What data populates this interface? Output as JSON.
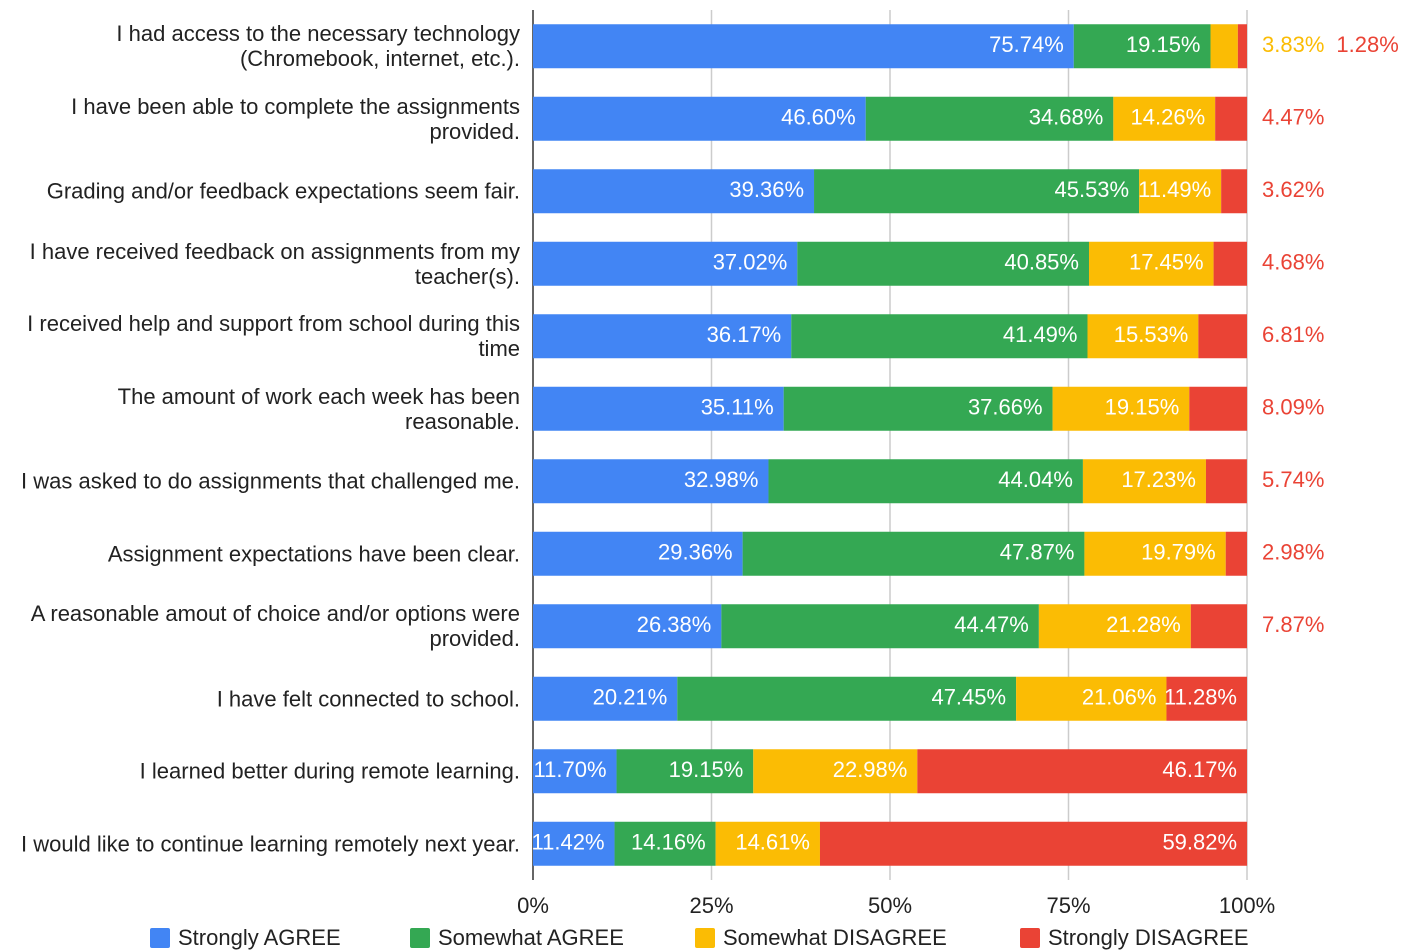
{
  "chart_data": {
    "type": "stacked_bar_horizontal",
    "categories": [
      "I had access to the necessary technology (Chromebook, internet, etc.).",
      "I have been able to complete the assignments provided.",
      "Grading and/or feedback expectations seem fair.",
      "I have received feedback on assignments from my teacher(s).",
      "I received help and support from school during this time",
      "The amount of work each week has been reasonable.",
      "I was asked to do assignments that challenged me.",
      "Assignment expectations have been clear.",
      "A reasonable amout of choice and/or options were provided.",
      "I have felt connected to school.",
      "I learned better during remote learning.",
      "I would like to continue learning remotely next year."
    ],
    "series": [
      {
        "name": "Strongly AGREE",
        "color": "#4285f4",
        "values": [
          75.74,
          46.6,
          39.36,
          37.02,
          36.17,
          35.11,
          32.98,
          29.36,
          26.38,
          20.21,
          11.7,
          11.42
        ],
        "value_labels": [
          "75.74%",
          "46.60%",
          "39.36%",
          "37.02%",
          "36.17%",
          "35.11%",
          "32.98%",
          "29.36%",
          "26.38%",
          "20.21%",
          "11.70%",
          "11.42%"
        ]
      },
      {
        "name": "Somewhat AGREE",
        "color": "#34a853",
        "values": [
          19.15,
          34.68,
          45.53,
          40.85,
          41.49,
          37.66,
          44.04,
          47.87,
          44.47,
          47.45,
          19.15,
          14.16
        ],
        "value_labels": [
          "19.15%",
          "34.68%",
          "45.53%",
          "40.85%",
          "41.49%",
          "37.66%",
          "44.04%",
          "47.87%",
          "44.47%",
          "47.45%",
          "19.15%",
          "14.16%"
        ]
      },
      {
        "name": "Somewhat DISAGREE",
        "color": "#fbbc04",
        "values": [
          3.83,
          14.26,
          11.49,
          17.45,
          15.53,
          19.15,
          17.23,
          19.79,
          21.28,
          21.06,
          22.98,
          14.61
        ],
        "value_labels": [
          "3.83%",
          "14.26%",
          "11.49%",
          "17.45%",
          "15.53%",
          "19.15%",
          "17.23%",
          "19.79%",
          "21.28%",
          "21.06%",
          "22.98%",
          "14.61%"
        ]
      },
      {
        "name": "Strongly DISAGREE",
        "color": "#ea4335",
        "values": [
          1.28,
          4.47,
          3.62,
          4.68,
          6.81,
          8.09,
          5.74,
          2.98,
          7.87,
          11.28,
          46.17,
          59.82
        ],
        "value_labels": [
          "1.28%",
          "4.47%",
          "3.62%",
          "4.68%",
          "6.81%",
          "8.09%",
          "5.74%",
          "2.98%",
          "7.87%",
          "11.28%",
          "46.17%",
          "59.82%"
        ]
      }
    ],
    "xlim": [
      0,
      100
    ],
    "xticks": [
      {
        "value": 0,
        "label": "0%"
      },
      {
        "value": 25,
        "label": "25%"
      },
      {
        "value": 50,
        "label": "50%"
      },
      {
        "value": 75,
        "label": "75%"
      },
      {
        "value": 100,
        "label": "100%"
      }
    ],
    "grid": true,
    "legend": "bottom"
  }
}
